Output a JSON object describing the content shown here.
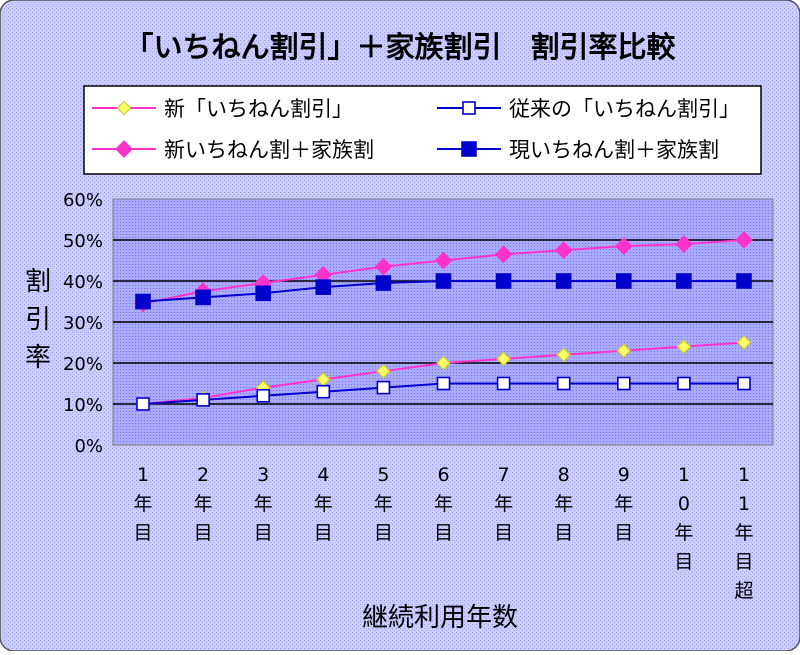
{
  "chart_data": {
    "type": "line",
    "title": "「いちねん割引」＋家族割引　割引率比較",
    "xlabel": "継続利用年数",
    "ylabel": "割引率",
    "ylim": [
      0,
      60
    ],
    "yticks": [
      "0%",
      "10%",
      "20%",
      "30%",
      "40%",
      "50%",
      "60%"
    ],
    "categories": [
      "1年目",
      "2年目",
      "3年目",
      "4年目",
      "5年目",
      "6年目",
      "7年目",
      "8年目",
      "9年目",
      "10年目",
      "11年目超"
    ],
    "grid": true,
    "legend_position": "top",
    "series": [
      {
        "name": "新「いちねん割引」",
        "color": "#ff33cc",
        "marker": "diamond-hollow",
        "values": [
          10,
          11.5,
          14,
          16,
          18,
          20,
          21,
          22,
          23,
          24,
          25
        ]
      },
      {
        "name": "従来の「いちねん割引」",
        "color": "#0000cc",
        "marker": "square-hollow",
        "values": [
          10,
          11,
          12,
          13,
          14,
          15,
          15,
          15,
          15,
          15,
          15
        ]
      },
      {
        "name": "新いちねん割＋家族割",
        "color": "#ff33cc",
        "marker": "diamond-filled",
        "values": [
          34.5,
          37.5,
          39.5,
          41.5,
          43.5,
          45,
          46.5,
          47.5,
          48.5,
          49,
          50
        ]
      },
      {
        "name": "現いちねん割＋家族割",
        "color": "#0000cc",
        "marker": "square-filled",
        "values": [
          35,
          36,
          37,
          38.5,
          39.5,
          40,
          40,
          40,
          40,
          40,
          40
        ]
      }
    ]
  },
  "colors": {
    "background": "#ccccff",
    "plot_area": "#9999ff",
    "gridline": "#000000"
  }
}
